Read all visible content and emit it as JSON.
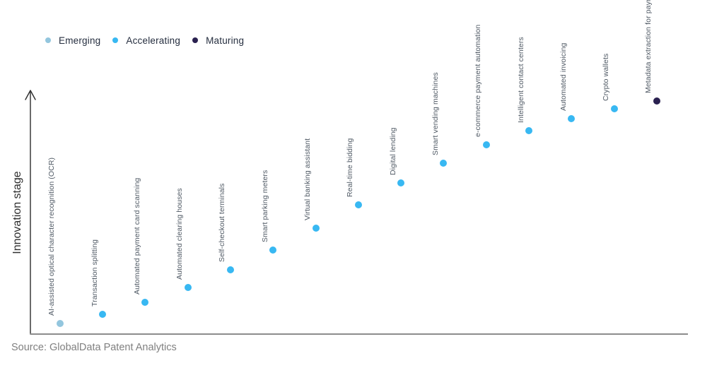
{
  "legend": [
    {
      "label": "Emerging",
      "color": "#93c6de"
    },
    {
      "label": "Accelerating",
      "color": "#38b8f2"
    },
    {
      "label": "Maturing",
      "color": "#2a2150"
    }
  ],
  "source": "Source: GlobalData Patent Analytics",
  "chart_data": {
    "type": "scatter",
    "title": "",
    "xlabel": "",
    "ylabel": "Innovation stage",
    "legend_position": "top-left",
    "y_axis": {
      "arrow": true,
      "ticks": "none",
      "range_note": "qualitative innovation stage, low to high"
    },
    "points": [
      {
        "label": "AI-assisted optical character recognition (OCR)",
        "stage": "Emerging",
        "value": 4.3
      },
      {
        "label": "Transaction splitting",
        "stage": "Accelerating",
        "value": 8.1
      },
      {
        "label": "Automated payment card scanning",
        "stage": "Accelerating",
        "value": 13.0
      },
      {
        "label": "Automated clearing houses",
        "stage": "Accelerating",
        "value": 19.1
      },
      {
        "label": "Self-checkout terminals",
        "stage": "Accelerating",
        "value": 26.4
      },
      {
        "label": "Smart parking meters",
        "stage": "Accelerating",
        "value": 34.5
      },
      {
        "label": "Virtual banking assistant",
        "stage": "Accelerating",
        "value": 43.5
      },
      {
        "label": "Real-time bidding",
        "stage": "Accelerating",
        "value": 53.0
      },
      {
        "label": "Digital lending",
        "stage": "Accelerating",
        "value": 62.0
      },
      {
        "label": "Smart vending machines",
        "stage": "Accelerating",
        "value": 70.1
      },
      {
        "label": "e-commerce payment automation",
        "stage": "Accelerating",
        "value": 77.7
      },
      {
        "label": "Intelligent contact centers",
        "stage": "Accelerating",
        "value": 83.5
      },
      {
        "label": "Automated invoicing",
        "stage": "Accelerating",
        "value": 88.4
      },
      {
        "label": "Crypto wallets",
        "stage": "Accelerating",
        "value": 92.5
      },
      {
        "label": "Metadata extraction for payments",
        "stage": "Maturing",
        "value": 95.7
      }
    ]
  }
}
